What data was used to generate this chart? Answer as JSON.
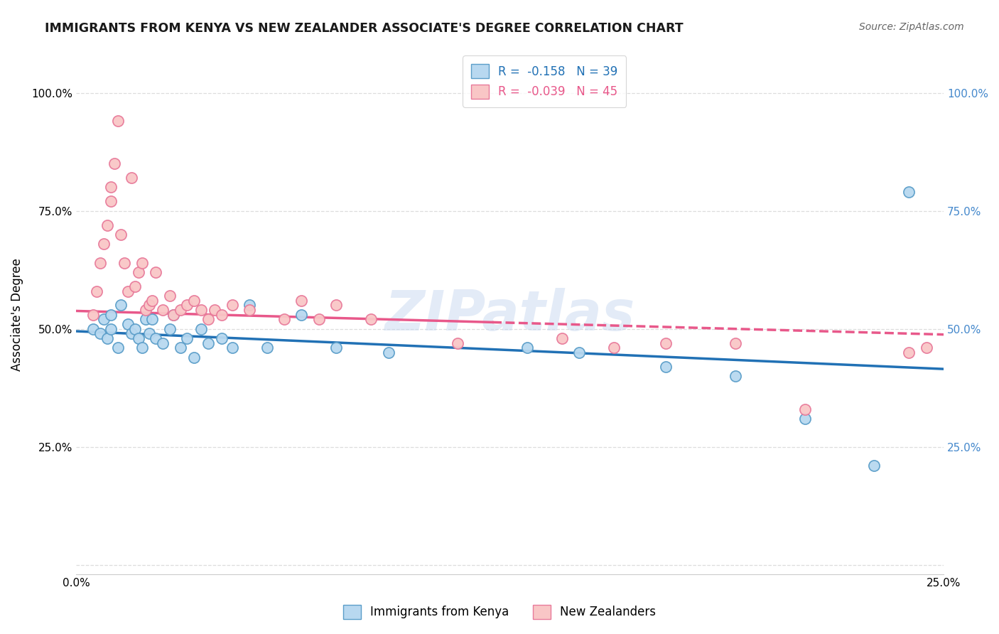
{
  "title": "IMMIGRANTS FROM KENYA VS NEW ZEALANDER ASSOCIATE'S DEGREE CORRELATION CHART",
  "source": "Source: ZipAtlas.com",
  "ylabel": "Associate's Degree",
  "xlim": [
    0.0,
    0.25
  ],
  "ylim": [
    -0.02,
    1.08
  ],
  "legend_entries": [
    {
      "label": "R =  -0.158   N = 39",
      "color": "#a8d0e8",
      "edgecolor": "#5b9ec9"
    },
    {
      "label": "R =  -0.039   N = 45",
      "color": "#f9c6c6",
      "edgecolor": "#e87a9a"
    }
  ],
  "scatter_kenya": {
    "color": "#b8d8f0",
    "edgecolor": "#5b9ec9",
    "x": [
      0.005,
      0.007,
      0.008,
      0.009,
      0.01,
      0.01,
      0.012,
      0.013,
      0.015,
      0.016,
      0.017,
      0.018,
      0.019,
      0.02,
      0.021,
      0.022,
      0.023,
      0.025,
      0.027,
      0.028,
      0.03,
      0.032,
      0.034,
      0.036,
      0.038,
      0.042,
      0.045,
      0.05,
      0.055,
      0.065,
      0.075,
      0.09,
      0.13,
      0.145,
      0.17,
      0.19,
      0.21,
      0.23,
      0.24
    ],
    "y": [
      0.5,
      0.49,
      0.52,
      0.48,
      0.53,
      0.5,
      0.46,
      0.55,
      0.51,
      0.49,
      0.5,
      0.48,
      0.46,
      0.52,
      0.49,
      0.52,
      0.48,
      0.47,
      0.5,
      0.53,
      0.46,
      0.48,
      0.44,
      0.5,
      0.47,
      0.48,
      0.46,
      0.55,
      0.46,
      0.53,
      0.46,
      0.45,
      0.46,
      0.45,
      0.42,
      0.4,
      0.31,
      0.21,
      0.79
    ]
  },
  "scatter_nz": {
    "color": "#f9c6c6",
    "edgecolor": "#e87a9a",
    "x": [
      0.005,
      0.006,
      0.007,
      0.008,
      0.009,
      0.01,
      0.01,
      0.011,
      0.012,
      0.013,
      0.014,
      0.015,
      0.016,
      0.017,
      0.018,
      0.019,
      0.02,
      0.021,
      0.022,
      0.023,
      0.025,
      0.027,
      0.028,
      0.03,
      0.032,
      0.034,
      0.036,
      0.038,
      0.04,
      0.042,
      0.045,
      0.05,
      0.06,
      0.065,
      0.07,
      0.075,
      0.085,
      0.14,
      0.155,
      0.17,
      0.19,
      0.24,
      0.245,
      0.11,
      0.21
    ],
    "y": [
      0.53,
      0.58,
      0.64,
      0.68,
      0.72,
      0.8,
      0.77,
      0.85,
      0.94,
      0.7,
      0.64,
      0.58,
      0.82,
      0.59,
      0.62,
      0.64,
      0.54,
      0.55,
      0.56,
      0.62,
      0.54,
      0.57,
      0.53,
      0.54,
      0.55,
      0.56,
      0.54,
      0.52,
      0.54,
      0.53,
      0.55,
      0.54,
      0.52,
      0.56,
      0.52,
      0.55,
      0.52,
      0.48,
      0.46,
      0.47,
      0.47,
      0.45,
      0.46,
      0.47,
      0.33
    ]
  },
  "trendline_kenya": {
    "color": "#2171b5",
    "x": [
      0.0,
      0.25
    ],
    "y": [
      0.495,
      0.415
    ]
  },
  "trendline_nz": {
    "color": "#e8588a",
    "x": [
      0.0,
      0.25
    ],
    "y": [
      0.538,
      0.488
    ]
  },
  "watermark": "ZIPatlas",
  "background_color": "#ffffff",
  "grid_color": "#dddddd"
}
